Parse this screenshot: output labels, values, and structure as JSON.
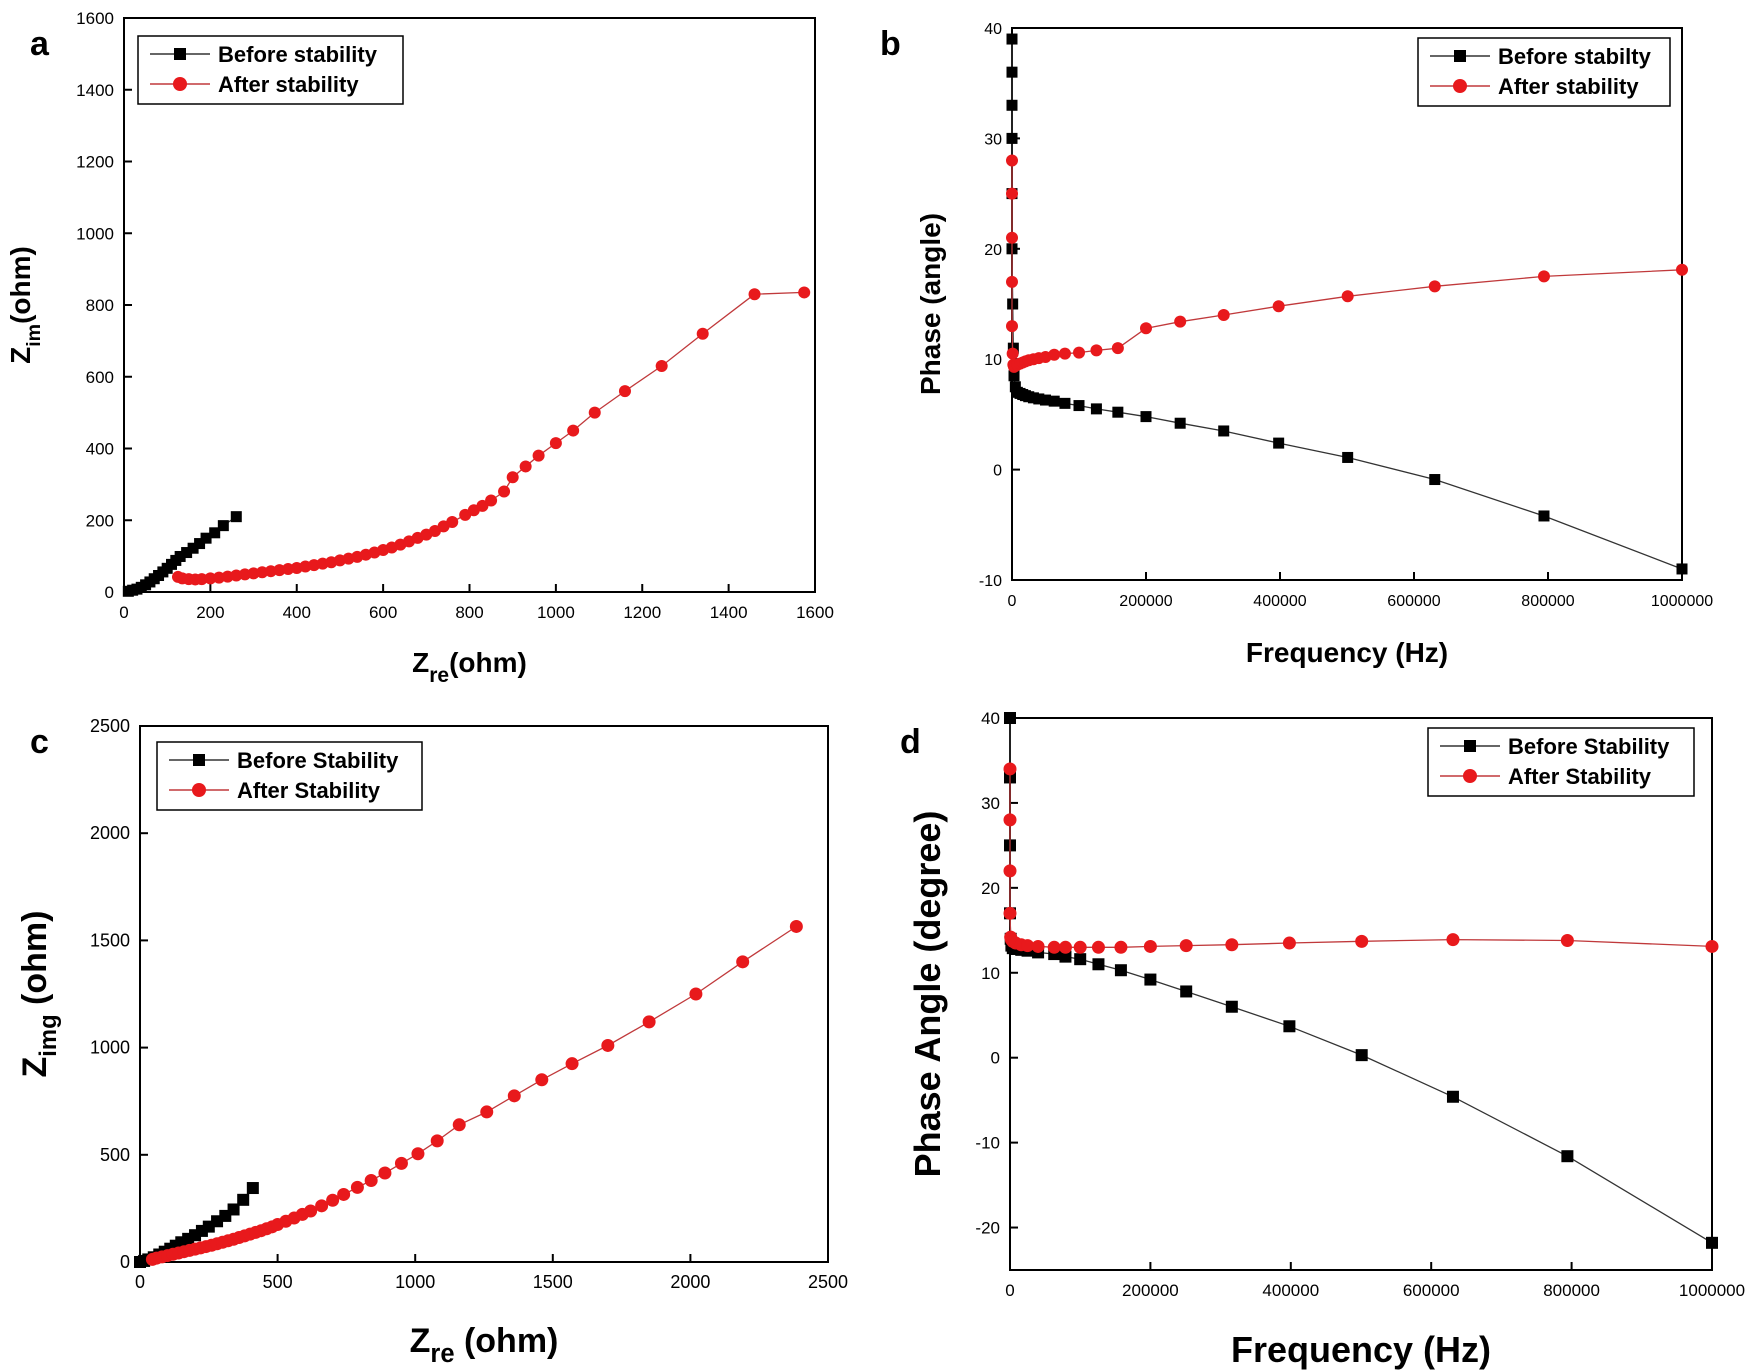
{
  "chart_data": [
    {
      "panel": "a",
      "type": "scatter",
      "xlabel_main": "Z",
      "xlabel_sub": "re",
      "xlabel_unit": "(ohm)",
      "ylabel_main": "Z",
      "ylabel_sub": "im",
      "ylabel_unit": "(ohm)",
      "xlim": [
        0,
        1600
      ],
      "ylim": [
        0,
        1600
      ],
      "xticks": [
        0,
        200,
        400,
        600,
        800,
        1000,
        1200,
        1400,
        1600
      ],
      "yticks": [
        0,
        200,
        400,
        600,
        800,
        1000,
        1200,
        1400,
        1600
      ],
      "legend_position": "top-left",
      "series": [
        {
          "name": "Before stability",
          "marker": "square",
          "color": "#000000",
          "x": [
            10,
            20,
            30,
            40,
            50,
            60,
            70,
            80,
            90,
            100,
            110,
            120,
            130,
            145,
            160,
            175,
            190,
            210,
            230,
            260
          ],
          "y": [
            2,
            5,
            8,
            13,
            20,
            28,
            37,
            46,
            56,
            66,
            77,
            88,
            99,
            110,
            122,
            135,
            150,
            165,
            185,
            210
          ]
        },
        {
          "name": "After stability",
          "marker": "circle",
          "color": "#e8191c",
          "x": [
            125,
            135,
            150,
            165,
            180,
            200,
            220,
            240,
            260,
            280,
            300,
            320,
            340,
            360,
            380,
            400,
            420,
            440,
            460,
            480,
            500,
            520,
            540,
            560,
            580,
            600,
            620,
            640,
            660,
            680,
            700,
            720,
            740,
            760,
            790,
            810,
            830,
            850,
            880,
            900,
            930,
            960,
            1000,
            1040,
            1090,
            1160,
            1245,
            1340,
            1460,
            1575
          ],
          "y": [
            42,
            38,
            36,
            35,
            36,
            38,
            40,
            43,
            46,
            49,
            52,
            55,
            58,
            61,
            64,
            67,
            71,
            75,
            79,
            83,
            88,
            93,
            98,
            104,
            110,
            117,
            124,
            132,
            141,
            151,
            160,
            170,
            183,
            195,
            215,
            228,
            240,
            255,
            280,
            320,
            350,
            380,
            415,
            450,
            500,
            560,
            630,
            720,
            830,
            835
          ]
        }
      ]
    },
    {
      "panel": "b",
      "type": "line",
      "xlabel": "Frequency (Hz)",
      "ylabel": "Phase (angle)",
      "xlim": [
        0,
        1000000
      ],
      "ylim": [
        -10,
        40
      ],
      "xticks": [
        0,
        200000,
        400000,
        600000,
        800000,
        1000000
      ],
      "yticks": [
        -10,
        0,
        10,
        20,
        30,
        40
      ],
      "legend_position": "top-right",
      "series": [
        {
          "name": "Before stabilty",
          "marker": "square",
          "color": "#000000",
          "x": [
            0,
            0,
            0,
            0,
            0,
            0,
            1000,
            2000,
            3000,
            5000,
            8000,
            12000,
            16000,
            20000,
            25000,
            32000,
            40000,
            50000,
            63000,
            79000,
            100000,
            126000,
            158000,
            200000,
            251000,
            316000,
            398000,
            501000,
            631000,
            794000,
            1000000
          ],
          "y": [
            39,
            36,
            33,
            30,
            25,
            20,
            15,
            11,
            8.5,
            7.5,
            7.0,
            6.9,
            6.8,
            6.7,
            6.6,
            6.5,
            6.4,
            6.3,
            6.2,
            6.0,
            5.8,
            5.5,
            5.2,
            4.8,
            4.2,
            3.5,
            2.4,
            1.1,
            -0.9,
            -4.2,
            -9.0
          ]
        },
        {
          "name": "After stability",
          "marker": "circle",
          "color": "#e8191c",
          "x": [
            0,
            0,
            0,
            0,
            0,
            1000,
            2000,
            3000,
            5000,
            8000,
            12000,
            16000,
            20000,
            25000,
            32000,
            40000,
            50000,
            63000,
            79000,
            100000,
            126000,
            158000,
            200000,
            251000,
            316000,
            398000,
            501000,
            631000,
            794000,
            1000000
          ],
          "y": [
            28,
            25,
            21,
            17,
            13,
            10.5,
            9.5,
            9.3,
            9.4,
            9.5,
            9.6,
            9.7,
            9.8,
            9.9,
            10.0,
            10.1,
            10.2,
            10.4,
            10.5,
            10.6,
            10.8,
            11.0,
            12.8,
            13.4,
            14.0,
            14.8,
            15.7,
            16.6,
            17.5,
            18.1
          ]
        }
      ]
    },
    {
      "panel": "c",
      "type": "scatter",
      "xlabel_main": "Z",
      "xlabel_sub": "re",
      "xlabel_unit": " (ohm)",
      "ylabel_main": "Z",
      "ylabel_sub": "img",
      "ylabel_unit": " (ohm)",
      "xlim": [
        0,
        2500
      ],
      "ylim": [
        0,
        2500
      ],
      "xticks": [
        0,
        500,
        1000,
        1500,
        2000,
        2500
      ],
      "yticks": [
        0,
        500,
        1000,
        1500,
        2000,
        2500
      ],
      "legend_position": "top-left",
      "series": [
        {
          "name": "Before Stability",
          "marker": "square",
          "color": "#000000",
          "x": [
            0,
            15,
            30,
            50,
            70,
            90,
            110,
            130,
            150,
            175,
            200,
            225,
            250,
            280,
            310,
            340,
            375,
            410
          ],
          "y": [
            0,
            5,
            12,
            22,
            35,
            48,
            62,
            76,
            92,
            108,
            125,
            145,
            165,
            190,
            215,
            245,
            290,
            345
          ]
        },
        {
          "name": "After Stability",
          "marker": "circle",
          "color": "#e8191c",
          "x": [
            45,
            60,
            80,
            100,
            120,
            140,
            160,
            180,
            200,
            220,
            240,
            260,
            280,
            300,
            320,
            340,
            360,
            380,
            400,
            420,
            440,
            460,
            480,
            500,
            530,
            560,
            590,
            620,
            660,
            700,
            740,
            790,
            840,
            890,
            950,
            1010,
            1080,
            1160,
            1260,
            1360,
            1460,
            1570,
            1700,
            1850,
            2020,
            2190,
            2385
          ],
          "y": [
            12,
            18,
            24,
            30,
            36,
            42,
            48,
            54,
            60,
            66,
            72,
            78,
            85,
            92,
            99,
            106,
            114,
            122,
            130,
            138,
            146,
            155,
            164,
            175,
            190,
            205,
            222,
            238,
            262,
            288,
            315,
            348,
            380,
            415,
            460,
            505,
            565,
            640,
            700,
            775,
            850,
            925,
            1010,
            1120,
            1250,
            1400,
            1565
          ]
        }
      ]
    },
    {
      "panel": "d",
      "type": "line",
      "xlabel": "Frequency (Hz)",
      "ylabel": "Phase Angle (degree)",
      "xlim": [
        0,
        1000000
      ],
      "ylim": [
        -25,
        40
      ],
      "xticks": [
        0,
        200000,
        400000,
        600000,
        800000,
        1000000
      ],
      "yticks": [
        -20,
        -10,
        0,
        10,
        20,
        30,
        40
      ],
      "legend_position": "top-right",
      "series": [
        {
          "name": "Before Stability",
          "marker": "square",
          "color": "#000000",
          "x": [
            0,
            0,
            0,
            0,
            1000,
            2000,
            4000,
            8000,
            16000,
            25000,
            40000,
            63000,
            79000,
            100000,
            126000,
            158000,
            200000,
            251000,
            316000,
            398000,
            501000,
            631000,
            794000,
            1000000
          ],
          "y": [
            40,
            33,
            25,
            17,
            14,
            13.2,
            12.9,
            12.8,
            12.7,
            12.6,
            12.4,
            12.2,
            11.9,
            11.6,
            11.0,
            10.3,
            9.2,
            7.8,
            6.0,
            3.7,
            0.3,
            -4.6,
            -11.6,
            -21.8
          ]
        },
        {
          "name": "After Stability",
          "marker": "circle",
          "color": "#e8191c",
          "x": [
            0,
            0,
            0,
            0,
            1000,
            2000,
            4000,
            8000,
            16000,
            25000,
            40000,
            63000,
            79000,
            100000,
            126000,
            158000,
            200000,
            251000,
            316000,
            398000,
            501000,
            631000,
            794000,
            1000000
          ],
          "y": [
            34,
            28,
            22,
            17,
            14.2,
            13.9,
            13.7,
            13.5,
            13.3,
            13.2,
            13.1,
            13.0,
            13.0,
            13.0,
            13.0,
            13.0,
            13.1,
            13.2,
            13.3,
            13.5,
            13.7,
            13.9,
            13.8,
            13.1
          ]
        }
      ]
    }
  ]
}
